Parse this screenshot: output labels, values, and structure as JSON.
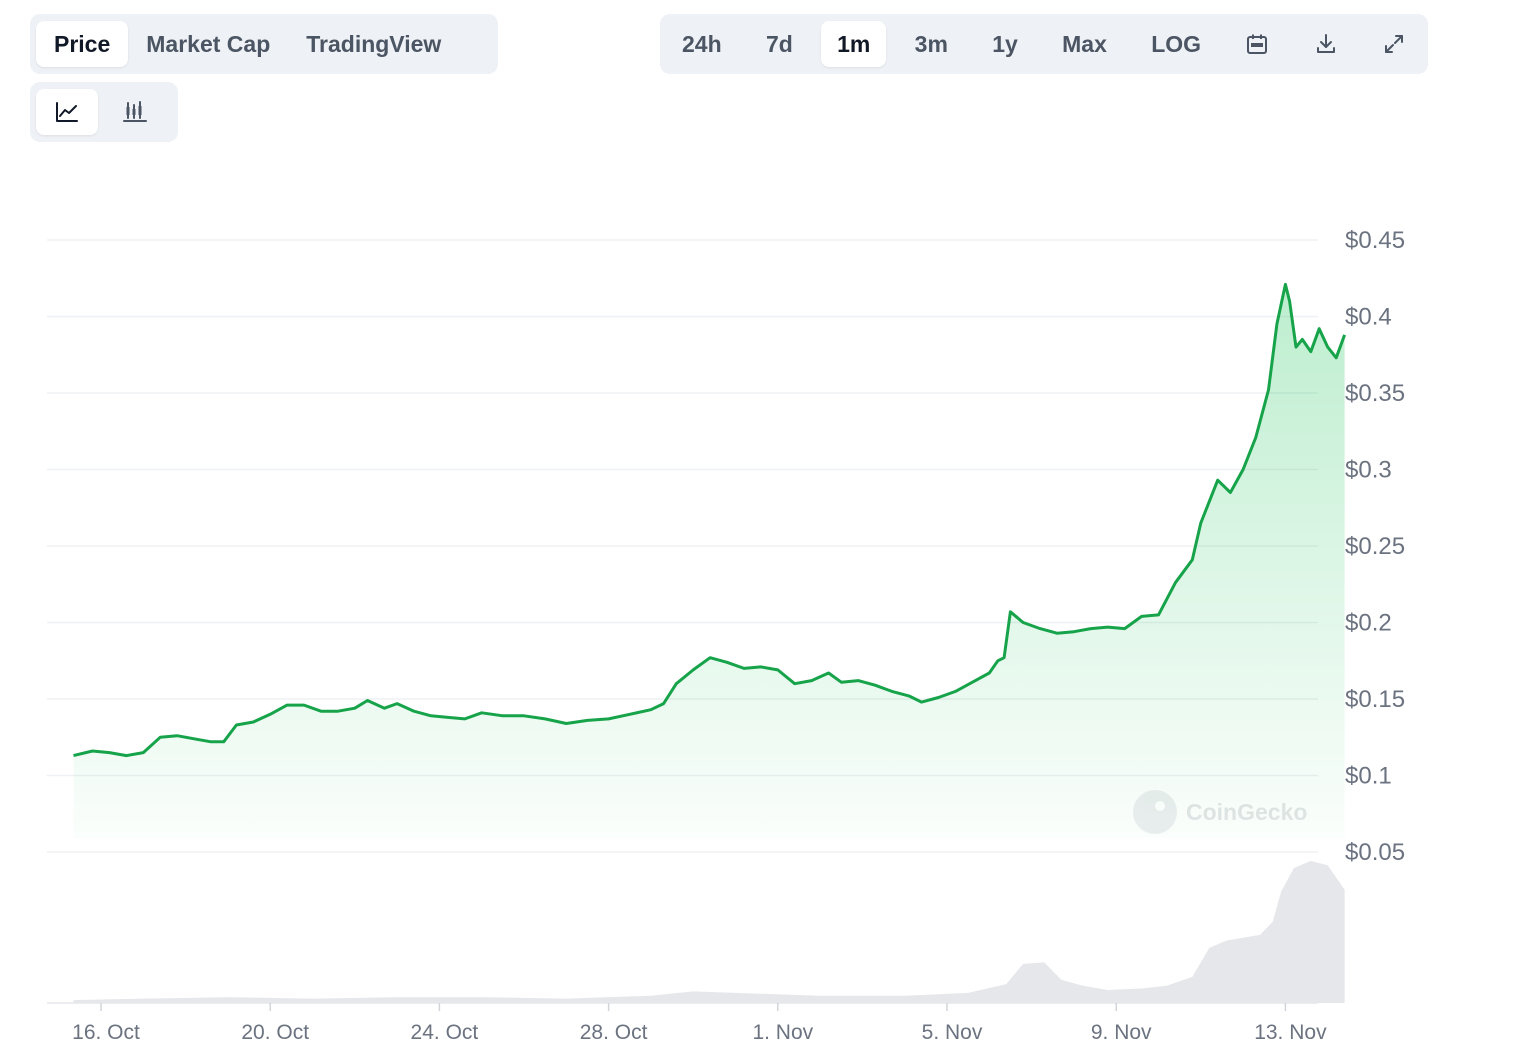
{
  "tabs": {
    "items": [
      {
        "label": "Price",
        "active": true
      },
      {
        "label": "Market Cap",
        "active": false
      },
      {
        "label": "TradingView",
        "active": false
      }
    ]
  },
  "ranges": {
    "items": [
      {
        "label": "24h",
        "active": false
      },
      {
        "label": "7d",
        "active": false
      },
      {
        "label": "1m",
        "active": true
      },
      {
        "label": "3m",
        "active": false
      },
      {
        "label": "1y",
        "active": false
      },
      {
        "label": "Max",
        "active": false
      },
      {
        "label": "LOG",
        "active": false
      }
    ],
    "icons": [
      "calendar-icon",
      "download-icon",
      "fullscreen-icon"
    ]
  },
  "chart_types": {
    "items": [
      {
        "icon": "line-chart-icon",
        "active": true
      },
      {
        "icon": "candlestick-chart-icon",
        "active": false
      }
    ]
  },
  "watermark": "CoinGecko",
  "colors": {
    "line": "#16a34a",
    "fill": "#22c55e",
    "volume": "#e5e7eb",
    "grid": "#eef0f3",
    "axis_text": "#6b7280"
  },
  "chart_data": {
    "type": "line",
    "title": "",
    "xlabel": "",
    "ylabel": "",
    "ylim": [
      0.05,
      0.45
    ],
    "y_ticks": [
      {
        "value": 0.45,
        "label": "$0.45"
      },
      {
        "value": 0.4,
        "label": "$0.4"
      },
      {
        "value": 0.35,
        "label": "$0.35"
      },
      {
        "value": 0.3,
        "label": "$0.3"
      },
      {
        "value": 0.25,
        "label": "$0.25"
      },
      {
        "value": 0.2,
        "label": "$0.2"
      },
      {
        "value": 0.15,
        "label": "$0.15"
      },
      {
        "value": 0.1,
        "label": "$0.1"
      },
      {
        "value": 0.05,
        "label": "$0.05"
      }
    ],
    "x_ticks": [
      {
        "label": "16. Oct",
        "day": 1
      },
      {
        "label": "20. Oct",
        "day": 5
      },
      {
        "label": "24. Oct",
        "day": 9
      },
      {
        "label": "28. Oct",
        "day": 13
      },
      {
        "label": "1. Nov",
        "day": 17
      },
      {
        "label": "5. Nov",
        "day": 21
      },
      {
        "label": "9. Nov",
        "day": 25
      },
      {
        "label": "13. Nov",
        "day": 29
      }
    ],
    "x_range": [
      0.35,
      30.4
    ],
    "grid": true,
    "series": [
      {
        "values": [
          [
            0.35,
            0.113
          ],
          [
            0.8,
            0.116
          ],
          [
            1.2,
            0.115
          ],
          [
            1.6,
            0.113
          ],
          [
            2.0,
            0.115
          ],
          [
            2.4,
            0.125
          ],
          [
            2.8,
            0.126
          ],
          [
            3.2,
            0.124
          ],
          [
            3.6,
            0.122
          ],
          [
            3.9,
            0.122
          ],
          [
            4.2,
            0.133
          ],
          [
            4.6,
            0.135
          ],
          [
            5.0,
            0.14
          ],
          [
            5.4,
            0.146
          ],
          [
            5.8,
            0.146
          ],
          [
            6.2,
            0.142
          ],
          [
            6.6,
            0.142
          ],
          [
            7.0,
            0.144
          ],
          [
            7.3,
            0.149
          ],
          [
            7.7,
            0.144
          ],
          [
            8.0,
            0.147
          ],
          [
            8.4,
            0.142
          ],
          [
            8.8,
            0.139
          ],
          [
            9.2,
            0.138
          ],
          [
            9.6,
            0.137
          ],
          [
            10.0,
            0.141
          ],
          [
            10.5,
            0.139
          ],
          [
            11.0,
            0.139
          ],
          [
            11.5,
            0.137
          ],
          [
            12.0,
            0.134
          ],
          [
            12.5,
            0.136
          ],
          [
            13.0,
            0.137
          ],
          [
            13.5,
            0.14
          ],
          [
            14.0,
            0.143
          ],
          [
            14.3,
            0.147
          ],
          [
            14.6,
            0.16
          ],
          [
            15.0,
            0.169
          ],
          [
            15.4,
            0.177
          ],
          [
            15.8,
            0.174
          ],
          [
            16.2,
            0.17
          ],
          [
            16.6,
            0.171
          ],
          [
            17.0,
            0.169
          ],
          [
            17.4,
            0.16
          ],
          [
            17.8,
            0.162
          ],
          [
            18.2,
            0.167
          ],
          [
            18.5,
            0.161
          ],
          [
            18.9,
            0.162
          ],
          [
            19.3,
            0.159
          ],
          [
            19.7,
            0.155
          ],
          [
            20.1,
            0.152
          ],
          [
            20.4,
            0.148
          ],
          [
            20.8,
            0.151
          ],
          [
            21.2,
            0.155
          ],
          [
            21.6,
            0.161
          ],
          [
            22.0,
            0.167
          ],
          [
            22.2,
            0.175
          ],
          [
            22.35,
            0.177
          ],
          [
            22.5,
            0.207
          ],
          [
            22.8,
            0.2
          ],
          [
            23.2,
            0.196
          ],
          [
            23.6,
            0.193
          ],
          [
            24.0,
            0.194
          ],
          [
            24.4,
            0.196
          ],
          [
            24.8,
            0.197
          ],
          [
            25.2,
            0.196
          ],
          [
            25.6,
            0.204
          ],
          [
            26.0,
            0.205
          ],
          [
            26.4,
            0.226
          ],
          [
            26.8,
            0.241
          ],
          [
            27.0,
            0.265
          ],
          [
            27.4,
            0.293
          ],
          [
            27.7,
            0.285
          ],
          [
            28.0,
            0.3
          ],
          [
            28.3,
            0.321
          ],
          [
            28.6,
            0.352
          ],
          [
            28.8,
            0.395
          ],
          [
            29.0,
            0.421
          ],
          [
            29.1,
            0.41
          ],
          [
            29.25,
            0.38
          ],
          [
            29.4,
            0.385
          ],
          [
            29.6,
            0.377
          ],
          [
            29.8,
            0.392
          ],
          [
            30.0,
            0.38
          ],
          [
            30.2,
            0.373
          ],
          [
            30.4,
            0.388
          ]
        ]
      }
    ],
    "volume": {
      "ylim": [
        0,
        1
      ],
      "values": [
        [
          0.35,
          0.02
        ],
        [
          2.0,
          0.03
        ],
        [
          4.0,
          0.04
        ],
        [
          6.0,
          0.03
        ],
        [
          8.0,
          0.04
        ],
        [
          10.0,
          0.04
        ],
        [
          12.0,
          0.03
        ],
        [
          14.0,
          0.05
        ],
        [
          15.0,
          0.08
        ],
        [
          16.0,
          0.07
        ],
        [
          18.0,
          0.05
        ],
        [
          20.0,
          0.05
        ],
        [
          21.5,
          0.07
        ],
        [
          22.4,
          0.13
        ],
        [
          22.8,
          0.27
        ],
        [
          23.3,
          0.28
        ],
        [
          23.7,
          0.16
        ],
        [
          24.2,
          0.12
        ],
        [
          24.8,
          0.09
        ],
        [
          25.6,
          0.1
        ],
        [
          26.2,
          0.12
        ],
        [
          26.8,
          0.18
        ],
        [
          27.2,
          0.38
        ],
        [
          27.6,
          0.43
        ],
        [
          28.0,
          0.45
        ],
        [
          28.4,
          0.47
        ],
        [
          28.7,
          0.56
        ],
        [
          28.9,
          0.77
        ],
        [
          29.2,
          0.93
        ],
        [
          29.6,
          0.98
        ],
        [
          30.0,
          0.95
        ],
        [
          30.4,
          0.78
        ]
      ]
    }
  }
}
